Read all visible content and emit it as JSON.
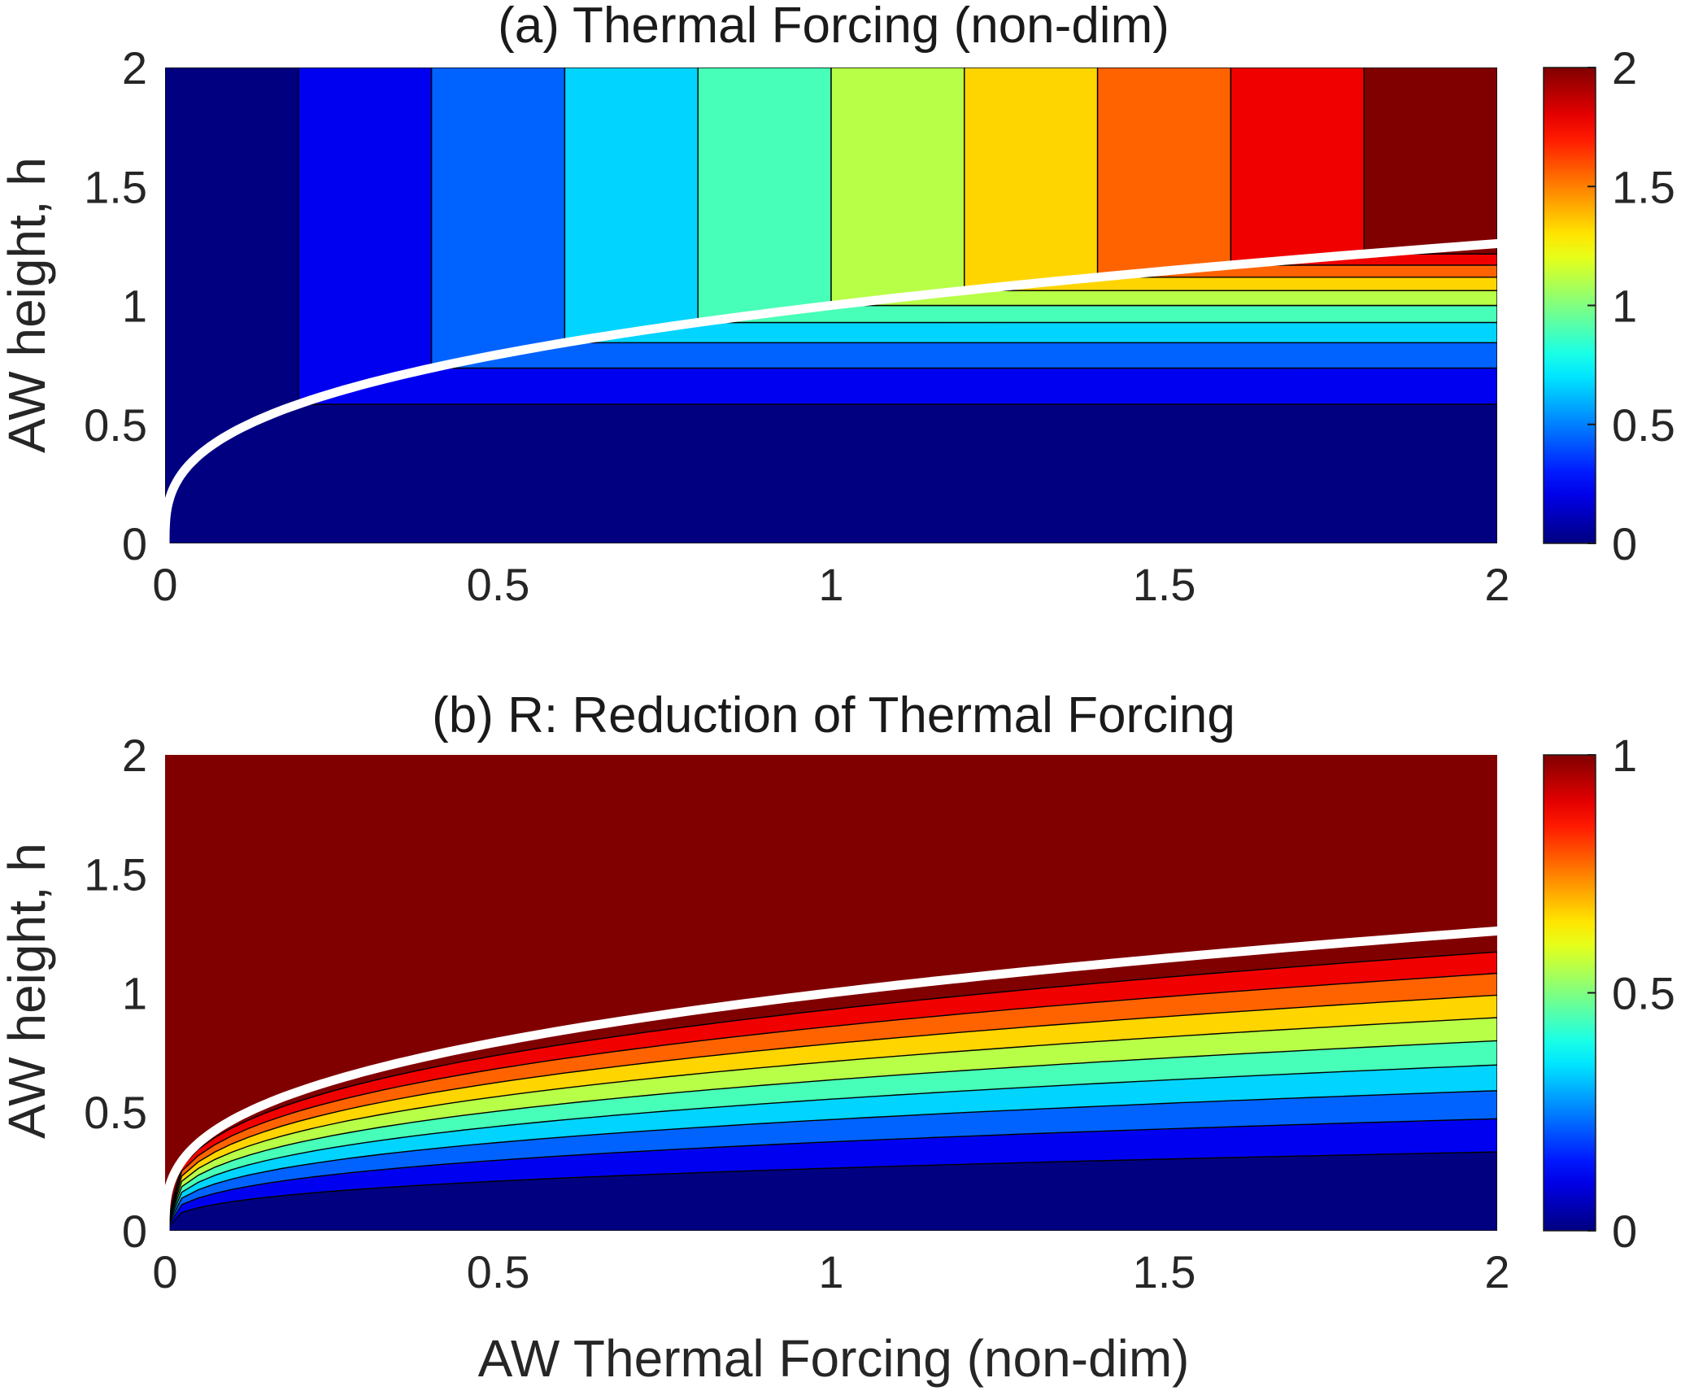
{
  "chart_data": [
    {
      "type": "heatmap",
      "title": "(a) Thermal Forcing (non-dim)",
      "ylabel": "AW height, h",
      "xlabel": "",
      "xlim": [
        0,
        2
      ],
      "ylim": [
        0,
        2
      ],
      "x_ticks": [
        "0",
        "0.5",
        "1",
        "1.5",
        "2"
      ],
      "y_ticks": [
        "0",
        "0.5",
        "1",
        "1.5",
        "2"
      ],
      "colorbar": {
        "range": [
          0,
          2
        ],
        "ticks": [
          "0",
          "0.5",
          "1",
          "1.5",
          "2"
        ],
        "colormap": "jet"
      },
      "contour_levels": [
        0.2,
        0.4,
        0.6,
        0.8,
        1.0,
        1.2,
        1.4,
        1.6,
        1.8
      ],
      "boundary_curve": {
        "color": "#ffffff",
        "x": [
          0,
          0.25,
          0.5,
          1,
          1.5,
          2
        ],
        "y": [
          0,
          0.6,
          0.76,
          1.0,
          1.14,
          1.26
        ]
      }
    },
    {
      "type": "heatmap",
      "title": "(b) R: Reduction of Thermal Forcing",
      "ylabel": "AW height, h",
      "xlabel": "AW Thermal Forcing (non-dim)",
      "xlim": [
        0,
        2
      ],
      "ylim": [
        0,
        2
      ],
      "x_ticks": [
        "0",
        "0.5",
        "1",
        "1.5",
        "2"
      ],
      "y_ticks": [
        "0",
        "0.5",
        "1",
        "1.5",
        "2"
      ],
      "colorbar": {
        "range": [
          0,
          1
        ],
        "ticks": [
          "0",
          "0.5",
          "1"
        ],
        "colormap": "jet"
      },
      "contour_levels": [
        0.1,
        0.2,
        0.3,
        0.4,
        0.5,
        0.6,
        0.7,
        0.8,
        0.9
      ],
      "boundary_curve": {
        "color": "#ffffff",
        "x": [
          0,
          0.25,
          0.5,
          1,
          1.5,
          2
        ],
        "y": [
          0,
          0.6,
          0.76,
          1.0,
          1.14,
          1.26
        ]
      }
    }
  ]
}
